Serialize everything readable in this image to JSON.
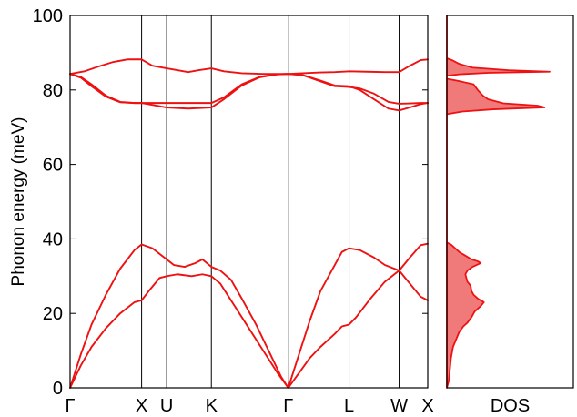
{
  "chart_data": [
    {
      "type": "line",
      "title": "",
      "xlabel": "",
      "ylabel": "Phonon energy (meV)",
      "ylim": [
        0,
        100
      ],
      "yticks": [
        0,
        20,
        40,
        60,
        80,
        100
      ],
      "grid": false,
      "legend": "none",
      "line_color": "#ee1111",
      "xlim": [
        0,
        1.0
      ],
      "kpoints": [
        {
          "label": "Γ",
          "x": 0.0
        },
        {
          "label": "X",
          "x": 0.2
        },
        {
          "label": "U",
          "x": 0.27
        },
        {
          "label": "K",
          "x": 0.395
        },
        {
          "label": "Γ",
          "x": 0.61
        },
        {
          "label": "L",
          "x": 0.78
        },
        {
          "label": "W",
          "x": 0.92
        },
        {
          "label": "X",
          "x": 1.0
        }
      ],
      "series": [
        {
          "values": [
            [
              0,
              0
            ],
            [
              0.03,
              6
            ],
            [
              0.06,
              11
            ],
            [
              0.1,
              16
            ],
            [
              0.14,
              20
            ],
            [
              0.18,
              23
            ],
            [
              0.2,
              23.5
            ],
            [
              0.22,
              26
            ],
            [
              0.25,
              29.5
            ],
            [
              0.27,
              30
            ],
            [
              0.3,
              30.5
            ],
            [
              0.34,
              30
            ],
            [
              0.37,
              30.5
            ],
            [
              0.395,
              30
            ],
            [
              0.42,
              28
            ],
            [
              0.46,
              22
            ],
            [
              0.5,
              16
            ],
            [
              0.54,
              10
            ],
            [
              0.58,
              4
            ],
            [
              0.61,
              0
            ],
            [
              0.64,
              4
            ],
            [
              0.67,
              8
            ],
            [
              0.7,
              11
            ],
            [
              0.74,
              14.5
            ],
            [
              0.76,
              16.5
            ],
            [
              0.78,
              17
            ],
            [
              0.8,
              19
            ],
            [
              0.84,
              24
            ],
            [
              0.88,
              28.5
            ],
            [
              0.92,
              31.5
            ],
            [
              0.95,
              28
            ],
            [
              0.98,
              24.5
            ],
            [
              1.0,
              23.5
            ]
          ]
        },
        {
          "values": [
            [
              0,
              0
            ],
            [
              0.03,
              9
            ],
            [
              0.06,
              17
            ],
            [
              0.1,
              25
            ],
            [
              0.14,
              32
            ],
            [
              0.18,
              37
            ],
            [
              0.2,
              38.5
            ],
            [
              0.23,
              37.5
            ],
            [
              0.27,
              34.5
            ],
            [
              0.29,
              33
            ],
            [
              0.32,
              32.5
            ],
            [
              0.35,
              33.5
            ],
            [
              0.37,
              34.5
            ],
            [
              0.395,
              32.5
            ],
            [
              0.42,
              31.5
            ],
            [
              0.45,
              29
            ],
            [
              0.48,
              24
            ],
            [
              0.52,
              17
            ],
            [
              0.56,
              9
            ],
            [
              0.59,
              3
            ],
            [
              0.61,
              0
            ],
            [
              0.64,
              9
            ],
            [
              0.67,
              18
            ],
            [
              0.7,
              26
            ],
            [
              0.74,
              33
            ],
            [
              0.76,
              36.5
            ],
            [
              0.78,
              37.5
            ],
            [
              0.81,
              37
            ],
            [
              0.85,
              35
            ],
            [
              0.88,
              33
            ],
            [
              0.92,
              31.5
            ],
            [
              0.95,
              35
            ],
            [
              0.98,
              38.3
            ],
            [
              1.0,
              38.7
            ]
          ]
        },
        {
          "values": [
            [
              0,
              84.3
            ],
            [
              0.03,
              83.5
            ],
            [
              0.06,
              81.5
            ],
            [
              0.1,
              78.5
            ],
            [
              0.14,
              76.8
            ],
            [
              0.18,
              76.5
            ],
            [
              0.2,
              76.5
            ],
            [
              0.23,
              76.5
            ],
            [
              0.27,
              76.5
            ],
            [
              0.33,
              76.5
            ],
            [
              0.395,
              76.5
            ],
            [
              0.43,
              78
            ],
            [
              0.48,
              81.5
            ],
            [
              0.53,
              83.5
            ],
            [
              0.58,
              84.2
            ],
            [
              0.61,
              84.3
            ],
            [
              0.65,
              84
            ],
            [
              0.7,
              82.5
            ],
            [
              0.74,
              81.2
            ],
            [
              0.78,
              81
            ],
            [
              0.81,
              80
            ],
            [
              0.85,
              77.5
            ],
            [
              0.89,
              75
            ],
            [
              0.92,
              74.5
            ],
            [
              0.95,
              75.3
            ],
            [
              0.98,
              76.2
            ],
            [
              1.0,
              76.5
            ]
          ]
        },
        {
          "values": [
            [
              0,
              84.3
            ],
            [
              0.03,
              83.3
            ],
            [
              0.06,
              81
            ],
            [
              0.1,
              78.2
            ],
            [
              0.14,
              76.7
            ],
            [
              0.18,
              76.5
            ],
            [
              0.2,
              76.5
            ],
            [
              0.23,
              76
            ],
            [
              0.27,
              75.3
            ],
            [
              0.33,
              75
            ],
            [
              0.395,
              75.3
            ],
            [
              0.43,
              77.5
            ],
            [
              0.48,
              81.2
            ],
            [
              0.53,
              83.4
            ],
            [
              0.58,
              84.2
            ],
            [
              0.61,
              84.3
            ],
            [
              0.65,
              84
            ],
            [
              0.7,
              82.3
            ],
            [
              0.74,
              81
            ],
            [
              0.78,
              80.8
            ],
            [
              0.81,
              80.4
            ],
            [
              0.85,
              79
            ],
            [
              0.89,
              76.8
            ],
            [
              0.92,
              76.3
            ],
            [
              0.95,
              76.4
            ],
            [
              0.98,
              76.5
            ],
            [
              1.0,
              76.5
            ]
          ]
        },
        {
          "values": [
            [
              0,
              84.3
            ],
            [
              0.04,
              85
            ],
            [
              0.08,
              86.3
            ],
            [
              0.12,
              87.5
            ],
            [
              0.16,
              88.2
            ],
            [
              0.2,
              88.2
            ],
            [
              0.23,
              86.5
            ],
            [
              0.27,
              85.8
            ],
            [
              0.3,
              85.3
            ],
            [
              0.33,
              84.8
            ],
            [
              0.36,
              85.3
            ],
            [
              0.395,
              85.8
            ],
            [
              0.43,
              85
            ],
            [
              0.48,
              84.5
            ],
            [
              0.54,
              84.3
            ],
            [
              0.61,
              84.3
            ],
            [
              0.65,
              84.5
            ],
            [
              0.7,
              84.7
            ],
            [
              0.74,
              84.8
            ],
            [
              0.78,
              85
            ],
            [
              0.83,
              84.9
            ],
            [
              0.88,
              84.8
            ],
            [
              0.92,
              84.8
            ],
            [
              0.95,
              86.5
            ],
            [
              0.98,
              88
            ],
            [
              1.0,
              88.2
            ]
          ]
        }
      ]
    },
    {
      "type": "area",
      "title": "",
      "xlabel": "DOS",
      "ylabel": "",
      "ylim": [
        0,
        100
      ],
      "orientation": "horizontal",
      "fill_color": "#f07a7a",
      "line_color": "#ee1111",
      "density": [
        [
          0,
          0
        ],
        [
          2,
          0.02
        ],
        [
          5,
          0.03
        ],
        [
          8,
          0.04
        ],
        [
          11,
          0.06
        ],
        [
          13,
          0.09
        ],
        [
          15,
          0.12
        ],
        [
          16.5,
          0.16
        ],
        [
          17.5,
          0.2
        ],
        [
          19,
          0.24
        ],
        [
          20.5,
          0.27
        ],
        [
          22,
          0.33
        ],
        [
          23,
          0.36
        ],
        [
          24,
          0.3
        ],
        [
          25,
          0.26
        ],
        [
          26,
          0.24
        ],
        [
          27.5,
          0.23
        ],
        [
          28.5,
          0.2
        ],
        [
          29.5,
          0.19
        ],
        [
          30.5,
          0.18
        ],
        [
          31.5,
          0.2
        ],
        [
          32.5,
          0.25
        ],
        [
          33.5,
          0.33
        ],
        [
          34,
          0.3
        ],
        [
          34.5,
          0.24
        ],
        [
          35.5,
          0.18
        ],
        [
          36.5,
          0.12
        ],
        [
          37.5,
          0.08
        ],
        [
          38.5,
          0.04
        ],
        [
          39,
          0
        ],
        [
          73.5,
          0
        ],
        [
          74.2,
          0.15
        ],
        [
          74.8,
          0.45
        ],
        [
          75.3,
          0.95
        ],
        [
          75.8,
          0.88
        ],
        [
          76.4,
          0.55
        ],
        [
          77.5,
          0.4
        ],
        [
          78.5,
          0.35
        ],
        [
          80,
          0.3
        ],
        [
          81.5,
          0.26
        ],
        [
          82.5,
          0.1
        ],
        [
          83,
          0
        ],
        [
          83.8,
          0
        ],
        [
          84.2,
          0.12
        ],
        [
          84.6,
          0.4
        ],
        [
          84.9,
          1.0
        ],
        [
          85.3,
          0.6
        ],
        [
          86,
          0.25
        ],
        [
          87,
          0.12
        ],
        [
          88,
          0.05
        ],
        [
          88.5,
          0
        ],
        [
          100,
          0
        ]
      ]
    }
  ]
}
